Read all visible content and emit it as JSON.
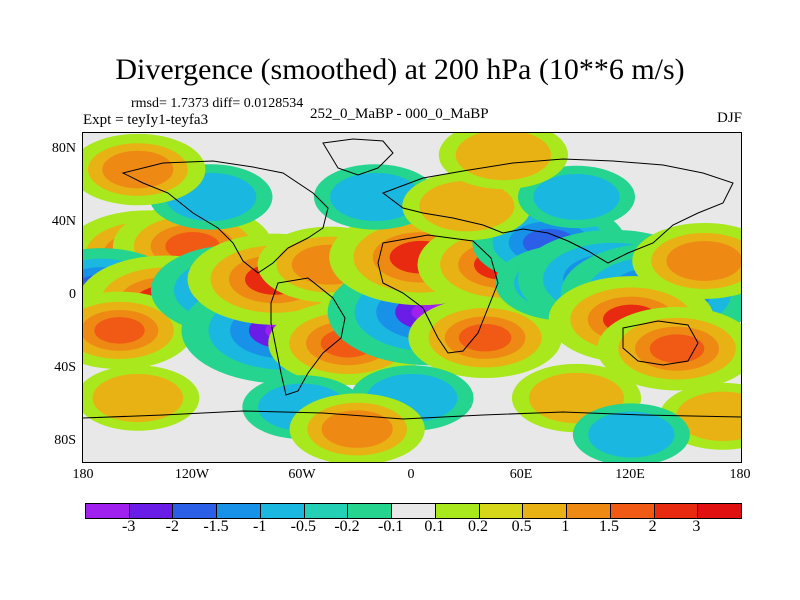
{
  "chart_data": {
    "type": "heatmap",
    "title": "Divergence (smoothed) at 200 hPa (10**6 m/s)",
    "rmsd_label": "rmsd= 1.7373 diff= 0.0128534",
    "experiment_label": "Expt = teyIy1-teyfa3",
    "period_label": "252_0_MaBP - 000_0_MaBP",
    "season_label": "DJF",
    "x_ticks": [
      "180",
      "120W",
      "60W",
      "0",
      "60E",
      "120E",
      "180"
    ],
    "x_tick_values": [
      -180,
      -120,
      -60,
      0,
      60,
      120,
      180
    ],
    "y_ticks": [
      "80N",
      "40N",
      "0",
      "40S",
      "80S"
    ],
    "y_tick_values": [
      80,
      40,
      0,
      -40,
      -80
    ],
    "xlim": [
      -180,
      180
    ],
    "ylim": [
      -90,
      90
    ],
    "colorbar_labels": [
      "-3",
      "-2",
      "-1.5",
      "-1",
      "-0.5",
      "-0.2",
      "-0.1",
      "0.1",
      "0.2",
      "0.5",
      "1",
      "1.5",
      "2",
      "3"
    ],
    "colorbar_levels": [
      -3,
      -2,
      -1.5,
      -1,
      -0.5,
      -0.2,
      -0.1,
      0.1,
      0.2,
      0.5,
      1,
      1.5,
      2,
      3
    ],
    "colorbar_colors": [
      "#a020f0",
      "#6a1de6",
      "#2b5fe8",
      "#1792e8",
      "#1ab8e0",
      "#23cfb5",
      "#24d48f",
      "#e8e8e8",
      "#a8e81c",
      "#d6d61a",
      "#e8b214",
      "#ee8a14",
      "#f05a14",
      "#e82a10",
      "#e01010"
    ],
    "features": [
      {
        "lon": -145,
        "lat": 24,
        "value": 2.2
      },
      {
        "lon": -120,
        "lat": 28,
        "value": 2.0
      },
      {
        "lon": -170,
        "lat": 5,
        "value": -1.8
      },
      {
        "lon": -135,
        "lat": -2,
        "value": 2.5
      },
      {
        "lon": -160,
        "lat": -18,
        "value": 1.6
      },
      {
        "lon": -95,
        "lat": 4,
        "value": -2.5
      },
      {
        "lon": -70,
        "lat": -18,
        "value": -3.5
      },
      {
        "lon": -75,
        "lat": 10,
        "value": 2.5
      },
      {
        "lon": -35,
        "lat": -25,
        "value": 2.0
      },
      {
        "lon": -45,
        "lat": 18,
        "value": 1.5
      },
      {
        "lon": 10,
        "lat": -8,
        "value": -3.5
      },
      {
        "lon": 5,
        "lat": 22,
        "value": 2.8
      },
      {
        "lon": 50,
        "lat": 18,
        "value": 2.4
      },
      {
        "lon": 40,
        "lat": -22,
        "value": 1.8
      },
      {
        "lon": 75,
        "lat": 30,
        "value": -1.8
      },
      {
        "lon": 85,
        "lat": 8,
        "value": -1.5
      },
      {
        "lon": 110,
        "lat": 10,
        "value": -3.0
      },
      {
        "lon": 135,
        "lat": 2,
        "value": -3.2
      },
      {
        "lon": 120,
        "lat": -12,
        "value": 2.2
      },
      {
        "lon": 145,
        "lat": -28,
        "value": 2.0
      },
      {
        "lon": 160,
        "lat": 20,
        "value": 1.5
      },
      {
        "lon": -110,
        "lat": 55,
        "value": -0.8
      },
      {
        "lon": -20,
        "lat": 55,
        "value": -0.8
      },
      {
        "lon": 30,
        "lat": 50,
        "value": 1.0
      },
      {
        "lon": 90,
        "lat": 55,
        "value": -0.6
      },
      {
        "lon": -150,
        "lat": 70,
        "value": 1.2
      },
      {
        "lon": 50,
        "lat": 78,
        "value": 1.0
      },
      {
        "lon": 0,
        "lat": -55,
        "value": -0.8
      },
      {
        "lon": 90,
        "lat": -55,
        "value": 1.0
      },
      {
        "lon": -150,
        "lat": -55,
        "value": 0.8
      },
      {
        "lon": -60,
        "lat": -60,
        "value": -0.7
      },
      {
        "lon": 170,
        "lat": -65,
        "value": 0.9
      },
      {
        "lon": -30,
        "lat": -72,
        "value": 1.2
      },
      {
        "lon": 120,
        "lat": -75,
        "value": -0.6
      }
    ]
  }
}
